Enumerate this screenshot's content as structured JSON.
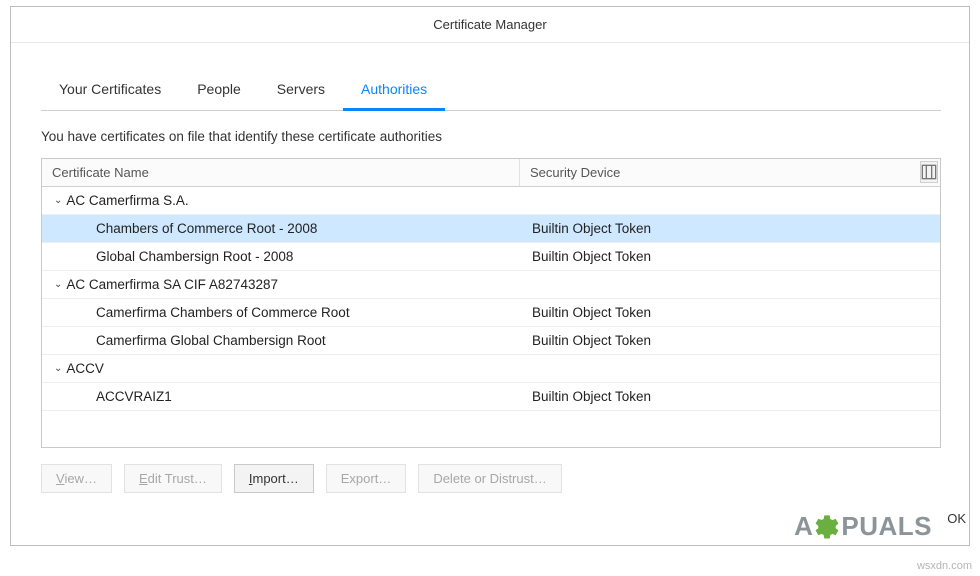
{
  "dialog": {
    "title": "Certificate Manager"
  },
  "tabs": {
    "your_certificates": "Your Certificates",
    "people": "People",
    "servers": "Servers",
    "authorities": "Authorities",
    "active": "authorities"
  },
  "description": "You have certificates on file that identify these certificate authorities",
  "table": {
    "columns": {
      "name": "Certificate Name",
      "device": "Security Device"
    },
    "rows": [
      {
        "type": "group",
        "name": "AC Camerfirma S.A.",
        "device": ""
      },
      {
        "type": "child",
        "name": "Chambers of Commerce Root - 2008",
        "device": "Builtin Object Token",
        "selected": true
      },
      {
        "type": "child",
        "name": "Global Chambersign Root - 2008",
        "device": "Builtin Object Token"
      },
      {
        "type": "group",
        "name": "AC Camerfirma SA CIF A82743287",
        "device": ""
      },
      {
        "type": "child",
        "name": "Camerfirma Chambers of Commerce Root",
        "device": "Builtin Object Token"
      },
      {
        "type": "child",
        "name": "Camerfirma Global Chambersign Root",
        "device": "Builtin Object Token"
      },
      {
        "type": "group",
        "name": "ACCV",
        "device": ""
      },
      {
        "type": "child",
        "name": "ACCVRAIZ1",
        "device": "Builtin Object Token"
      }
    ]
  },
  "buttons": {
    "view": "View…",
    "edit_trust": "Edit Trust…",
    "import": "Import…",
    "export": "Export…",
    "delete": "Delete or Distrust…",
    "ok": "OK"
  },
  "watermark": {
    "prefix": "A",
    "suffix": "PUALS"
  },
  "source": "wsxdn.com",
  "colors": {
    "tab_active": "#0a84ff",
    "row_selected_bg": "#cee8ff",
    "border": "#c9c9c9",
    "text": "#222222",
    "disabled_text": "#a7a7a7",
    "watermark_text": "#7f8a8f",
    "gear_fill": "#5aa82d"
  }
}
